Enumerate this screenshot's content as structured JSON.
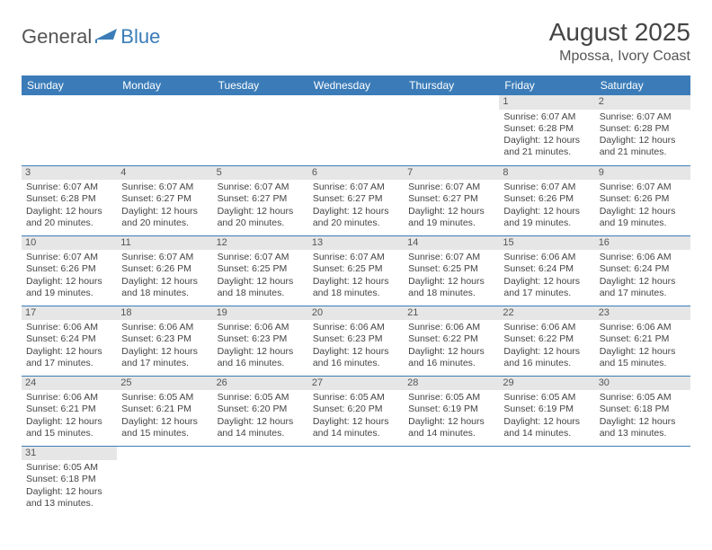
{
  "logo": {
    "text1": "General",
    "text2": "Blue"
  },
  "title": "August 2025",
  "location": "Mpossa, Ivory Coast",
  "colors": {
    "header_bg": "#3b7cb8",
    "header_fg": "#ffffff",
    "daynum_bg": "#e6e6e6",
    "rule": "#3b7cb8",
    "body_text": "#444444"
  },
  "day_headers": [
    "Sunday",
    "Monday",
    "Tuesday",
    "Wednesday",
    "Thursday",
    "Friday",
    "Saturday"
  ],
  "weeks": [
    [
      null,
      null,
      null,
      null,
      null,
      {
        "n": "1",
        "sr": "6:07 AM",
        "ss": "6:28 PM",
        "dl": "12 hours and 21 minutes."
      },
      {
        "n": "2",
        "sr": "6:07 AM",
        "ss": "6:28 PM",
        "dl": "12 hours and 21 minutes."
      }
    ],
    [
      {
        "n": "3",
        "sr": "6:07 AM",
        "ss": "6:28 PM",
        "dl": "12 hours and 20 minutes."
      },
      {
        "n": "4",
        "sr": "6:07 AM",
        "ss": "6:27 PM",
        "dl": "12 hours and 20 minutes."
      },
      {
        "n": "5",
        "sr": "6:07 AM",
        "ss": "6:27 PM",
        "dl": "12 hours and 20 minutes."
      },
      {
        "n": "6",
        "sr": "6:07 AM",
        "ss": "6:27 PM",
        "dl": "12 hours and 20 minutes."
      },
      {
        "n": "7",
        "sr": "6:07 AM",
        "ss": "6:27 PM",
        "dl": "12 hours and 19 minutes."
      },
      {
        "n": "8",
        "sr": "6:07 AM",
        "ss": "6:26 PM",
        "dl": "12 hours and 19 minutes."
      },
      {
        "n": "9",
        "sr": "6:07 AM",
        "ss": "6:26 PM",
        "dl": "12 hours and 19 minutes."
      }
    ],
    [
      {
        "n": "10",
        "sr": "6:07 AM",
        "ss": "6:26 PM",
        "dl": "12 hours and 19 minutes."
      },
      {
        "n": "11",
        "sr": "6:07 AM",
        "ss": "6:26 PM",
        "dl": "12 hours and 18 minutes."
      },
      {
        "n": "12",
        "sr": "6:07 AM",
        "ss": "6:25 PM",
        "dl": "12 hours and 18 minutes."
      },
      {
        "n": "13",
        "sr": "6:07 AM",
        "ss": "6:25 PM",
        "dl": "12 hours and 18 minutes."
      },
      {
        "n": "14",
        "sr": "6:07 AM",
        "ss": "6:25 PM",
        "dl": "12 hours and 18 minutes."
      },
      {
        "n": "15",
        "sr": "6:06 AM",
        "ss": "6:24 PM",
        "dl": "12 hours and 17 minutes."
      },
      {
        "n": "16",
        "sr": "6:06 AM",
        "ss": "6:24 PM",
        "dl": "12 hours and 17 minutes."
      }
    ],
    [
      {
        "n": "17",
        "sr": "6:06 AM",
        "ss": "6:24 PM",
        "dl": "12 hours and 17 minutes."
      },
      {
        "n": "18",
        "sr": "6:06 AM",
        "ss": "6:23 PM",
        "dl": "12 hours and 17 minutes."
      },
      {
        "n": "19",
        "sr": "6:06 AM",
        "ss": "6:23 PM",
        "dl": "12 hours and 16 minutes."
      },
      {
        "n": "20",
        "sr": "6:06 AM",
        "ss": "6:23 PM",
        "dl": "12 hours and 16 minutes."
      },
      {
        "n": "21",
        "sr": "6:06 AM",
        "ss": "6:22 PM",
        "dl": "12 hours and 16 minutes."
      },
      {
        "n": "22",
        "sr": "6:06 AM",
        "ss": "6:22 PM",
        "dl": "12 hours and 16 minutes."
      },
      {
        "n": "23",
        "sr": "6:06 AM",
        "ss": "6:21 PM",
        "dl": "12 hours and 15 minutes."
      }
    ],
    [
      {
        "n": "24",
        "sr": "6:06 AM",
        "ss": "6:21 PM",
        "dl": "12 hours and 15 minutes."
      },
      {
        "n": "25",
        "sr": "6:05 AM",
        "ss": "6:21 PM",
        "dl": "12 hours and 15 minutes."
      },
      {
        "n": "26",
        "sr": "6:05 AM",
        "ss": "6:20 PM",
        "dl": "12 hours and 14 minutes."
      },
      {
        "n": "27",
        "sr": "6:05 AM",
        "ss": "6:20 PM",
        "dl": "12 hours and 14 minutes."
      },
      {
        "n": "28",
        "sr": "6:05 AM",
        "ss": "6:19 PM",
        "dl": "12 hours and 14 minutes."
      },
      {
        "n": "29",
        "sr": "6:05 AM",
        "ss": "6:19 PM",
        "dl": "12 hours and 14 minutes."
      },
      {
        "n": "30",
        "sr": "6:05 AM",
        "ss": "6:18 PM",
        "dl": "12 hours and 13 minutes."
      }
    ],
    [
      {
        "n": "31",
        "sr": "6:05 AM",
        "ss": "6:18 PM",
        "dl": "12 hours and 13 minutes."
      },
      null,
      null,
      null,
      null,
      null,
      null
    ]
  ],
  "labels": {
    "sunrise": "Sunrise: ",
    "sunset": "Sunset: ",
    "daylight": "Daylight: "
  }
}
